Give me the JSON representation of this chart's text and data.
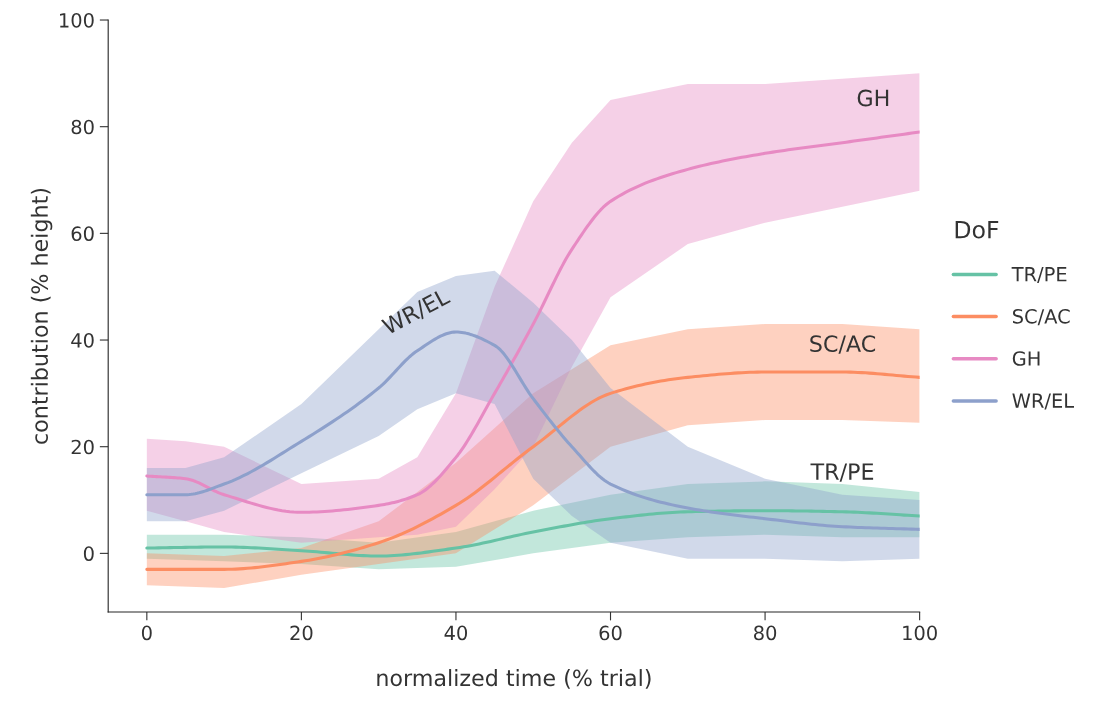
{
  "chart_data": {
    "type": "line",
    "xlabel": "normalized time (% trial)",
    "ylabel": "contribution (% height)",
    "legend_title": "DoF",
    "legend": "right",
    "grid": false,
    "xlim": [
      -5,
      100
    ],
    "ylim": [
      -11,
      100
    ],
    "xticks": [
      0,
      20,
      40,
      60,
      80,
      100
    ],
    "yticks": [
      0,
      20,
      40,
      60,
      80,
      100
    ],
    "series": [
      {
        "name": "TR/PE",
        "color": "#66c2a5",
        "x": [
          0,
          10,
          20,
          30,
          40,
          50,
          60,
          70,
          80,
          90,
          100
        ],
        "values": [
          1,
          1.2,
          0.5,
          -0.5,
          1,
          4,
          6.5,
          7.8,
          8,
          7.8,
          7
        ],
        "lower": [
          -1,
          -1.5,
          -2,
          -3,
          -2.5,
          0,
          2,
          3,
          3.5,
          3,
          3
        ],
        "upper": [
          3.5,
          3.5,
          3,
          2,
          4,
          8,
          11,
          13,
          13.5,
          13,
          11.5
        ]
      },
      {
        "name": "SC/AC",
        "color": "#fc8d62",
        "x": [
          0,
          10,
          20,
          30,
          40,
          50,
          60,
          70,
          80,
          90,
          100
        ],
        "values": [
          -3,
          -3,
          -1.5,
          2,
          9,
          20,
          30,
          33,
          34,
          34,
          33
        ],
        "lower": [
          -6,
          -6.5,
          -4,
          -2,
          0,
          9,
          20,
          24,
          25,
          25,
          24.5
        ],
        "upper": [
          0,
          -0.5,
          1,
          6,
          17,
          30,
          39,
          42,
          43,
          43,
          42
        ]
      },
      {
        "name": "GH",
        "color": "#e78ac3",
        "x": [
          0,
          5,
          10,
          20,
          30,
          35,
          40,
          45,
          50,
          55,
          60,
          70,
          80,
          90,
          100
        ],
        "values": [
          14.5,
          14,
          11,
          7.7,
          9,
          11,
          18,
          30,
          43,
          57,
          66,
          72,
          75,
          77,
          79
        ],
        "lower": [
          8,
          6,
          4,
          2,
          3,
          3.5,
          5,
          12,
          20,
          35,
          48,
          58,
          62,
          65,
          68
        ],
        "upper": [
          21.5,
          21,
          20,
          13,
          14,
          18,
          30,
          50,
          66,
          77,
          85,
          88,
          88,
          89,
          90
        ]
      },
      {
        "name": "WR/EL",
        "color": "#8da0cb",
        "x": [
          0,
          5,
          10,
          20,
          30,
          35,
          40,
          45,
          50,
          55,
          60,
          70,
          80,
          90,
          100
        ],
        "values": [
          11,
          11,
          13,
          21,
          31,
          38,
          41.5,
          39,
          29,
          20,
          13,
          8.5,
          6.5,
          5,
          4.5
        ],
        "lower": [
          6,
          6,
          8,
          15,
          22,
          27,
          30,
          28,
          14,
          7,
          2,
          -1,
          -1,
          -1.5,
          -1
        ],
        "upper": [
          16,
          16,
          18,
          28,
          42,
          49,
          52,
          53,
          47,
          40,
          31,
          20,
          14,
          11,
          10
        ]
      }
    ],
    "annotations": [
      "GH",
      "SC/AC",
      "TR/PE",
      "WR/EL"
    ]
  }
}
